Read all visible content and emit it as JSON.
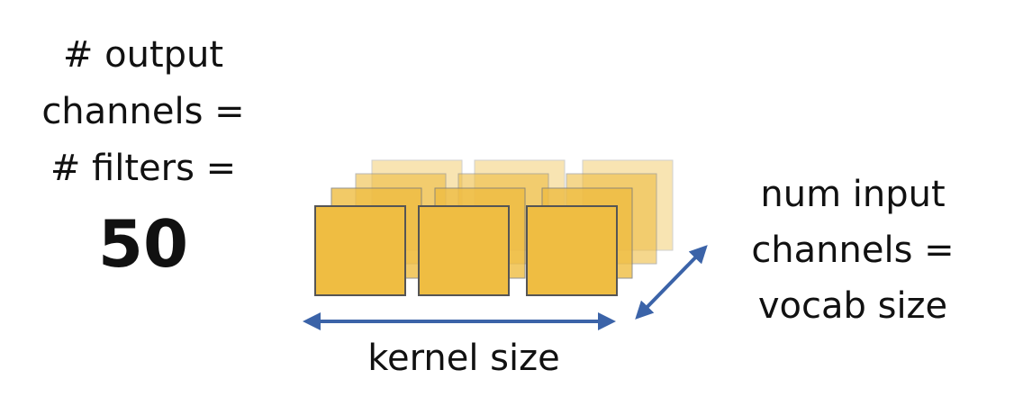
{
  "left_label": {
    "lines": [
      "# output",
      "channels =",
      "# filters ="
    ],
    "value": "50"
  },
  "right_label": {
    "lines": [
      "num input",
      "channels =",
      "vocab size"
    ]
  },
  "bottom_label": "kernel size",
  "colors": {
    "filter_fill": "#EFBD42",
    "filter_stroke": "#555555",
    "arrow": "#3B63A8"
  }
}
